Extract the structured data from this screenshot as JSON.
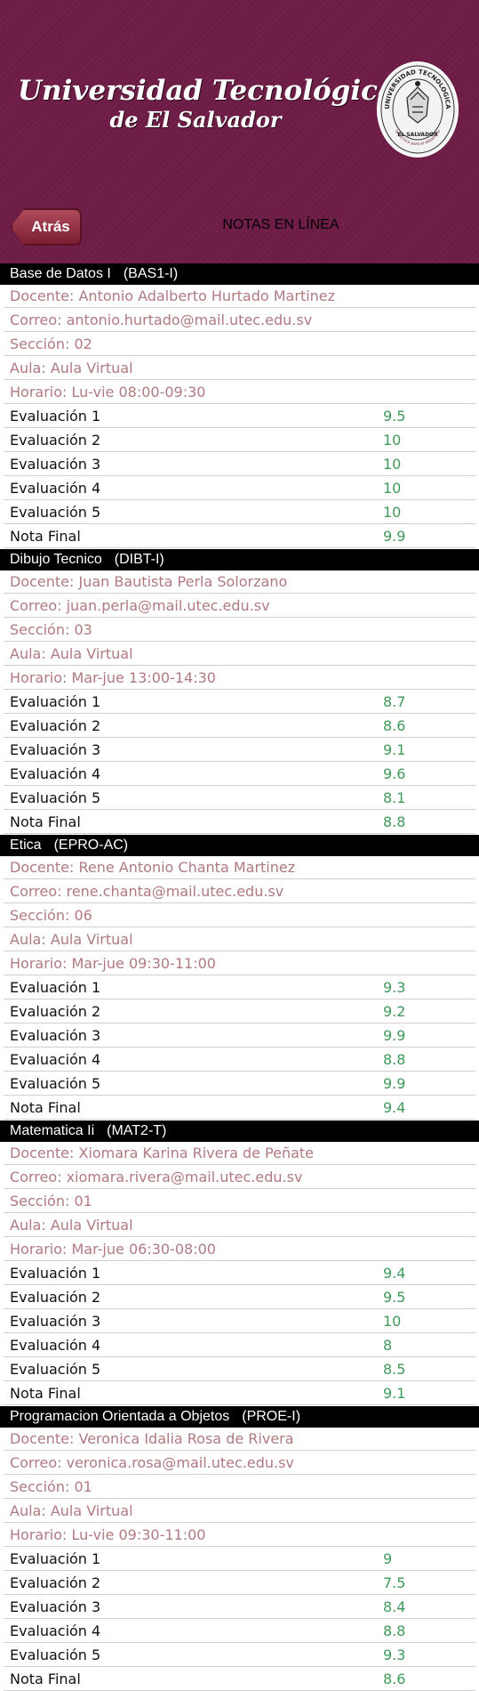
{
  "header": {
    "title_line1": "Universidad Tecnológica",
    "title_line2": "de El Salvador",
    "back_label": "Atrás",
    "page_title": "NOTAS EN LÍNEA",
    "seal_text_top": "UNIVERSIDAD TECNOLOGICA",
    "seal_text_bottom": "EL SALVADOR",
    "seal_text_side": "La Ciencia y la Técnica para el desarrollo de la nación"
  },
  "colors": {
    "brand": "#6c1c45",
    "info_text": "#b07a80",
    "grade_value": "#3f9a5a",
    "course_header_bg": "#000000"
  },
  "courses": [
    {
      "name": "Base de Datos I",
      "code": "(BAS1-I)",
      "docente": "Docente: Antonio Adalberto Hurtado Martinez",
      "correo": "Correo: antonio.hurtado@mail.utec.edu.sv",
      "seccion": "Sección: 02",
      "aula": "Aula: Aula Virtual",
      "horario": "Horario: Lu-vie 08:00-09:30",
      "grades": [
        {
          "label": "Evaluación 1",
          "value": "9.5"
        },
        {
          "label": "Evaluación 2",
          "value": "10"
        },
        {
          "label": "Evaluación 3",
          "value": "10"
        },
        {
          "label": "Evaluación 4",
          "value": "10"
        },
        {
          "label": "Evaluación 5",
          "value": "10"
        },
        {
          "label": "Nota Final",
          "value": "9.9"
        }
      ]
    },
    {
      "name": "Dibujo Tecnico",
      "code": "(DIBT-I)",
      "docente": "Docente: Juan Bautista Perla Solorzano",
      "correo": "Correo: juan.perla@mail.utec.edu.sv",
      "seccion": "Sección: 03",
      "aula": "Aula: Aula Virtual",
      "horario": "Horario: Mar-jue 13:00-14:30",
      "grades": [
        {
          "label": "Evaluación 1",
          "value": "8.7"
        },
        {
          "label": "Evaluación 2",
          "value": "8.6"
        },
        {
          "label": "Evaluación 3",
          "value": "9.1"
        },
        {
          "label": "Evaluación 4",
          "value": "9.6"
        },
        {
          "label": "Evaluación 5",
          "value": "8.1"
        },
        {
          "label": "Nota Final",
          "value": "8.8"
        }
      ]
    },
    {
      "name": "Etica",
      "code": "(EPRO-AC)",
      "docente": "Docente: Rene Antonio Chanta Martinez",
      "correo": "Correo: rene.chanta@mail.utec.edu.sv",
      "seccion": "Sección: 06",
      "aula": "Aula: Aula Virtual",
      "horario": "Horario: Mar-jue 09:30-11:00",
      "grades": [
        {
          "label": "Evaluación 1",
          "value": "9.3"
        },
        {
          "label": "Evaluación 2",
          "value": "9.2"
        },
        {
          "label": "Evaluación 3",
          "value": "9.9"
        },
        {
          "label": "Evaluación 4",
          "value": "8.8"
        },
        {
          "label": "Evaluación 5",
          "value": "9.9"
        },
        {
          "label": "Nota Final",
          "value": "9.4"
        }
      ]
    },
    {
      "name": "Matematica Ii",
      "code": "(MAT2-T)",
      "docente": "Docente: Xiomara Karina Rivera de Peñate",
      "correo": "Correo: xiomara.rivera@mail.utec.edu.sv",
      "seccion": "Sección: 01",
      "aula": "Aula: Aula Virtual",
      "horario": "Horario: Mar-jue 06:30-08:00",
      "grades": [
        {
          "label": "Evaluación 1",
          "value": "9.4"
        },
        {
          "label": "Evaluación 2",
          "value": "9.5"
        },
        {
          "label": "Evaluación 3",
          "value": "10"
        },
        {
          "label": "Evaluación 4",
          "value": "8"
        },
        {
          "label": "Evaluación 5",
          "value": "8.5"
        },
        {
          "label": "Nota Final",
          "value": "9.1"
        }
      ]
    },
    {
      "name": "Programacion Orientada a Objetos",
      "code": "(PROE-I)",
      "docente": "Docente: Veronica Idalia Rosa de Rivera",
      "correo": "Correo: veronica.rosa@mail.utec.edu.sv",
      "seccion": "Sección: 01",
      "aula": "Aula: Aula Virtual",
      "horario": "Horario: Lu-vie 09:30-11:00",
      "grades": [
        {
          "label": "Evaluación 1",
          "value": "9"
        },
        {
          "label": "Evaluación 2",
          "value": "7.5"
        },
        {
          "label": "Evaluación 3",
          "value": "8.4"
        },
        {
          "label": "Evaluación 4",
          "value": "8.8"
        },
        {
          "label": "Evaluación 5",
          "value": "9.3"
        },
        {
          "label": "Nota Final",
          "value": "8.6"
        }
      ]
    }
  ]
}
